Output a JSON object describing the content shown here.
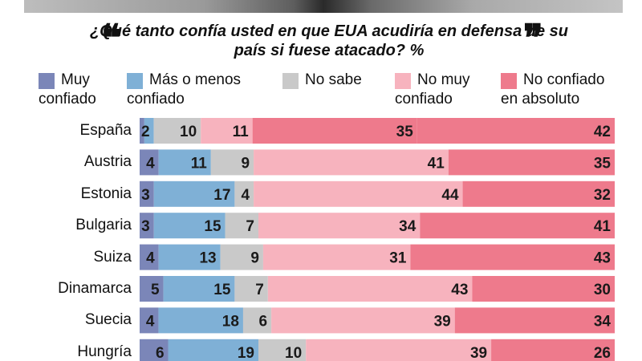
{
  "header": {
    "question": "¿Qué tanto confía usted en que EUA acudiría en defensa de su país si fuese atacado? %",
    "quote_open": "❝",
    "quote_close": "❞"
  },
  "chart_data": {
    "type": "bar",
    "orientation": "horizontal",
    "stacked": true,
    "title": "¿Qué tanto confía usted en que EUA acudiría en defensa de su país si fuese atacado? %",
    "categories": [
      "España",
      "Austria",
      "Estonia",
      "Bulgaria",
      "Suiza",
      "Dinamarca",
      "Suecia",
      "Hungría"
    ],
    "series": [
      {
        "name": "Muy confiado",
        "color": "#7b86b8",
        "values": [
          1,
          4,
          3,
          3,
          4,
          5,
          4,
          6
        ],
        "labels": [
          "",
          "4",
          "3",
          "3",
          "4",
          "5",
          "4",
          "6"
        ]
      },
      {
        "name": "Más o menos confiado",
        "color": "#7fb0d6",
        "values": [
          2,
          11,
          17,
          15,
          13,
          15,
          18,
          19
        ],
        "labels": [
          "2",
          "11",
          "17",
          "15",
          "13",
          "15",
          "18",
          "19"
        ]
      },
      {
        "name": "No sabe",
        "color": "#c9c9c9",
        "values": [
          10,
          9,
          4,
          7,
          9,
          7,
          6,
          10
        ],
        "labels": [
          "10",
          "9",
          "4",
          "7",
          "9",
          "7",
          "6",
          "10"
        ]
      },
      {
        "name": "No muy confiado",
        "color": "#f7b3be",
        "values": [
          11,
          41,
          44,
          34,
          31,
          43,
          39,
          39
        ],
        "labels": [
          "11",
          "41",
          "44",
          "34",
          "31",
          "43",
          "39",
          "39"
        ]
      },
      {
        "name": "No confiado en absoluto",
        "color": "#ee7a8c",
        "values": [
          35,
          35,
          32,
          41,
          43,
          30,
          34,
          26
        ],
        "labels": [
          "35",
          "35",
          "32",
          "41",
          "43",
          "30",
          "34",
          "26"
        ]
      },
      {
        "name": "",
        "color": "#ee7a8c",
        "values": [
          42,
          0,
          0,
          0,
          0,
          0,
          0,
          0
        ],
        "labels": [
          "42",
          "",
          "",
          "",
          "",
          "",
          "",
          ""
        ]
      }
    ],
    "legend": [
      {
        "line1": "Muy",
        "line2": "confiado",
        "color": "#7b86b8"
      },
      {
        "line1": "Más o menos",
        "line2": "confiado",
        "color": "#7fb0d6"
      },
      {
        "line1": "No sabe",
        "line2": "",
        "color": "#c9c9c9"
      },
      {
        "line1": "No muy",
        "line2": "confiado",
        "color": "#f7b3be"
      },
      {
        "line1": "No confiado",
        "line2": "en absoluto",
        "color": "#ee7a8c"
      }
    ],
    "legend_position": "top",
    "grid": false
  }
}
